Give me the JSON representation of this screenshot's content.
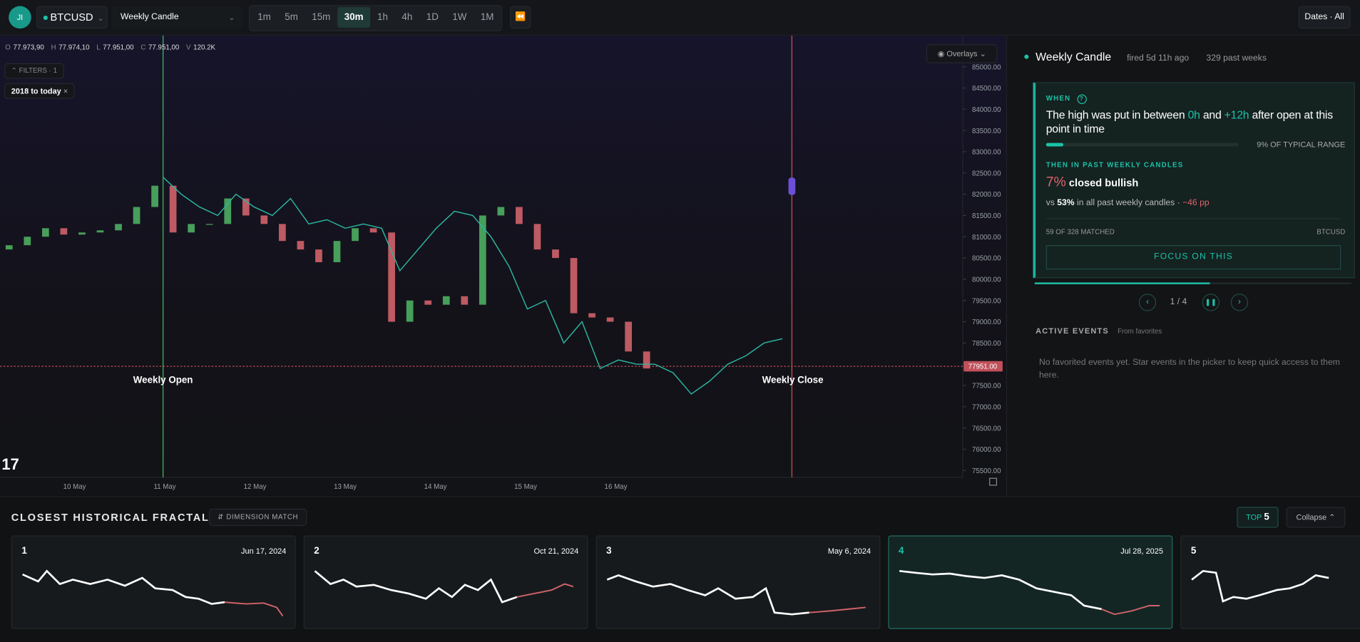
{
  "header": {
    "avatar": "JI",
    "symbol": "BTCUSD",
    "event": "Weekly Candle",
    "timeframes": [
      "1m",
      "5m",
      "15m",
      "30m",
      "1h",
      "4h",
      "1D",
      "1W",
      "1M"
    ],
    "active_timeframe": "30m",
    "dates": "Dates · All"
  },
  "chart": {
    "ohlcv": [
      {
        "key": "O",
        "value": "77.973,90"
      },
      {
        "key": "H",
        "value": "77.974,10"
      },
      {
        "key": "L",
        "value": "77.951,00"
      },
      {
        "key": "C",
        "value": "77.951,00"
      },
      {
        "key": "V",
        "value": "120.2K"
      }
    ],
    "overlays": "Overlays",
    "filters": "FILTERS · 1",
    "filter_chip": "2018 to today",
    "price_ticks": [
      {
        "value": 85000,
        "label": "85000.00"
      },
      {
        "value": 84500,
        "label": "84500.00"
      },
      {
        "value": 84000,
        "label": "84000.00"
      },
      {
        "value": 83500,
        "label": "83500.00"
      },
      {
        "value": 83000,
        "label": "83000.00"
      },
      {
        "value": 82500,
        "label": "82500.00"
      },
      {
        "value": 82000,
        "label": "82000.00"
      },
      {
        "value": 81500,
        "label": "81500.00"
      },
      {
        "value": 81000,
        "label": "81000.00"
      },
      {
        "value": 80500,
        "label": "80500.00"
      },
      {
        "value": 80000,
        "label": "80000.00"
      },
      {
        "value": 79500,
        "label": "79500.00"
      },
      {
        "value": 79000,
        "label": "79000.00"
      },
      {
        "value": 78500,
        "label": "78500.00"
      },
      {
        "value": 78000,
        "label": "78000.00"
      },
      {
        "value": 77500,
        "label": "77500.00"
      },
      {
        "value": 77000,
        "label": "77000.00"
      },
      {
        "value": 76500,
        "label": "76500.00"
      },
      {
        "value": 76000,
        "label": "76000.00"
      },
      {
        "value": 75500,
        "label": "75500.00"
      }
    ],
    "current_price": {
      "value": 77951,
      "label": "77951.00"
    },
    "date_labels": [
      "10 May",
      "11 May",
      "12 May",
      "13 May",
      "14 May",
      "15 May",
      "16 May"
    ],
    "weekly_open": "Weekly Open",
    "weekly_close": "Weekly Close",
    "price": [
      80700,
      80800,
      81000,
      81200,
      81050,
      81100,
      81150,
      81300,
      81700,
      82200,
      81100,
      81300,
      81300,
      81900,
      81500,
      81300,
      80900,
      80700,
      80400,
      80900,
      81200,
      81100,
      79000,
      79500,
      79400,
      79600,
      79400,
      81500,
      81700,
      81300,
      80700,
      80500,
      79200,
      79100,
      79000,
      78300,
      77900
    ],
    "overlay": [
      82400,
      82000,
      81700,
      81500,
      82000,
      81700,
      81500,
      81900,
      81300,
      81400,
      81200,
      81300,
      81200,
      80200,
      80700,
      81200,
      81600,
      81500,
      81000,
      80300,
      79300,
      79500,
      78500,
      79000,
      77900,
      78100,
      78000,
      78000,
      77800,
      77300,
      77600,
      78000,
      78200,
      78500,
      78600
    ]
  },
  "panel": {
    "title": "Weekly Candle",
    "fired": "fired 5d 11h ago",
    "weeks": "329 past weeks",
    "when": "WHEN",
    "help": "?",
    "statement": [
      "The high was put in between ",
      "0h",
      " and ",
      "+12h",
      " after open at this point in time"
    ],
    "range": {
      "value": 9,
      "label": "9% OF TYPICAL RANGE"
    },
    "then": "THEN IN PAST WEEKLY CANDLES",
    "stat": "7%",
    "stat_text": "closed bullish",
    "compare": [
      "vs ",
      "53%",
      " in all past weekly candles · ",
      "−46 pp"
    ],
    "matched": "59 OF 328 MATCHED",
    "symbol": "BTCUSD",
    "button": "FOCUS ON THIS",
    "pager": "1 / 4",
    "active_events": "ACTIVE EVENTS",
    "favorites": "From favorites",
    "empty": "No favorited events yet. Star events in the picker to keep quick access to them here."
  },
  "fractals": {
    "title": "CLOSEST HISTORICAL FRACTALS",
    "dimension": "DIMENSION MATCH",
    "top": "TOP",
    "top_count": "5",
    "collapse": "Collapse",
    "cards": [
      {
        "rank": "1",
        "date": "Jun 17, 2024"
      },
      {
        "rank": "2",
        "date": "Oct 21, 2024"
      },
      {
        "rank": "3",
        "date": "May 6, 2024"
      },
      {
        "rank": "4",
        "date": "Jul 28, 2025",
        "selected": true
      },
      {
        "rank": "5"
      }
    ]
  }
}
